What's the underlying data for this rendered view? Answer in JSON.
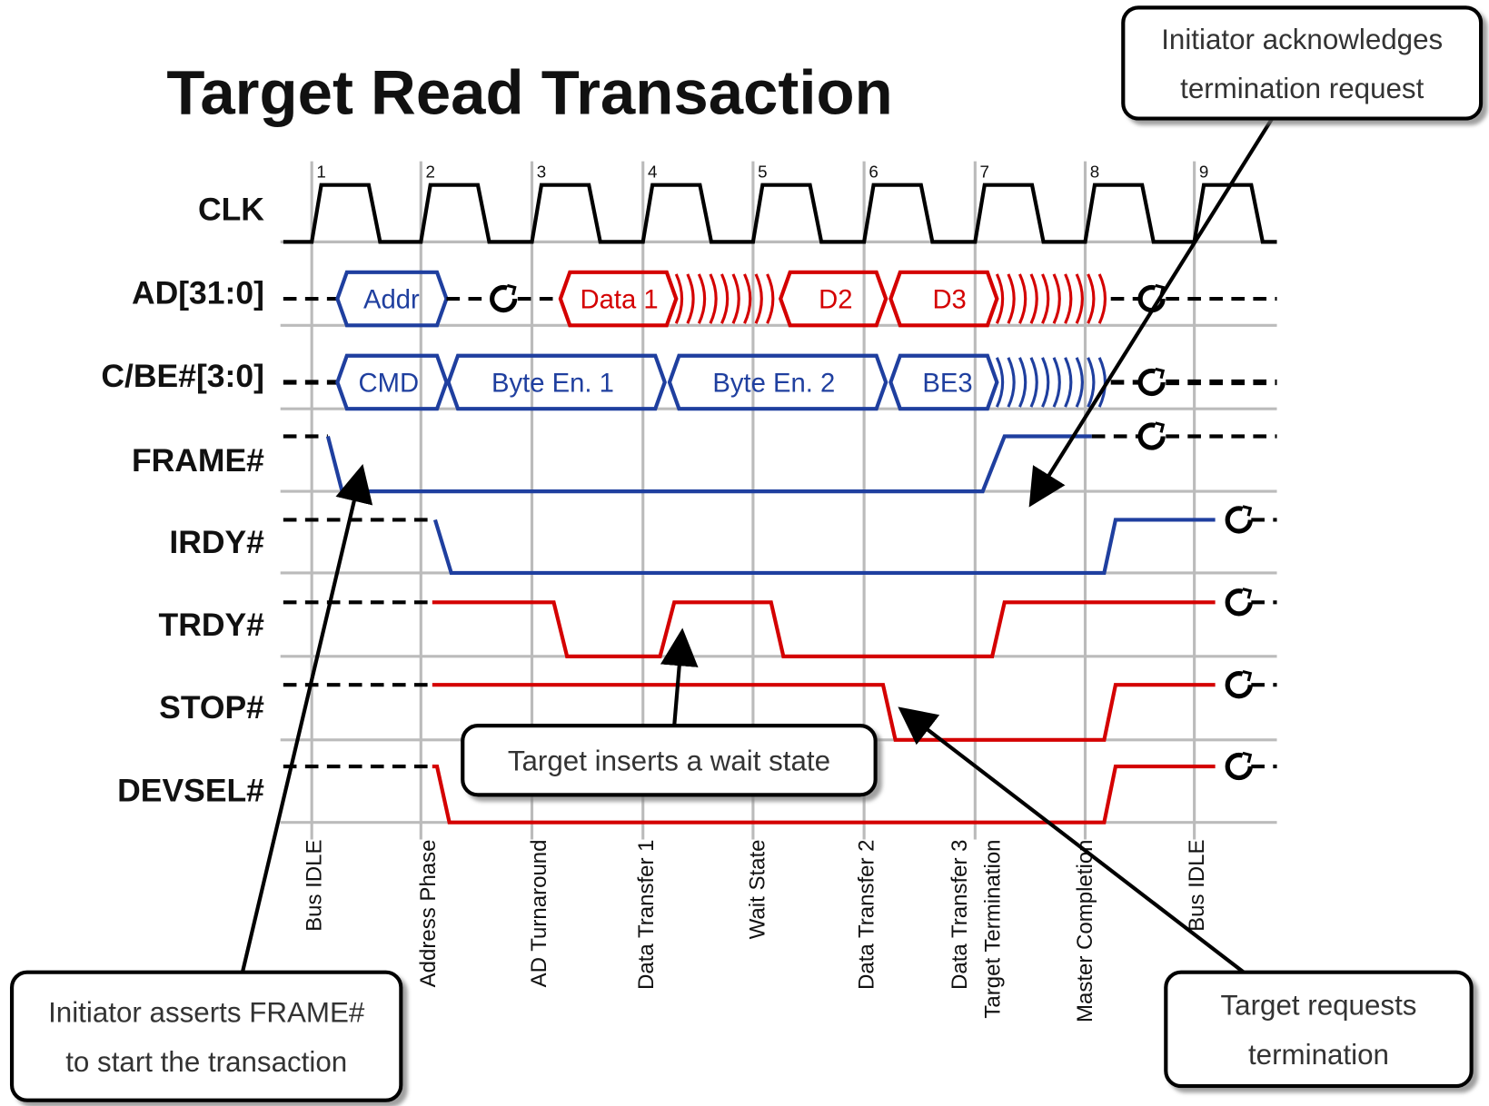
{
  "title": "Target Read Transaction",
  "signals": [
    "CLK",
    "AD[31:0]",
    "C/BE#[3:0]",
    "FRAME#",
    "IRDY#",
    "TRDY#",
    "STOP#",
    "DEVSEL#"
  ],
  "clock_edges": [
    "1",
    "2",
    "3",
    "4",
    "5",
    "6",
    "7",
    "8",
    "9"
  ],
  "ad_segments": [
    "Addr",
    "Data 1",
    "D2",
    "D3"
  ],
  "cbe_segments": [
    "CMD",
    "Byte En. 1",
    "Byte En. 2",
    "BE3"
  ],
  "phases": [
    "Bus IDLE",
    "Address Phase",
    "AD Turnaround",
    "Data Transfer 1",
    "Wait State",
    "Data Transfer 2",
    "Data Transfer 3",
    "Target Termination",
    "Master Completion",
    "Bus IDLE"
  ],
  "callouts": [
    {
      "lines": [
        "Initiator acknowledges",
        "termination request"
      ]
    },
    {
      "lines": [
        "Initiator asserts FRAME#",
        "to start the transaction"
      ]
    },
    {
      "lines": [
        "Target inserts a wait state"
      ]
    },
    {
      "lines": [
        "Target requests",
        "termination"
      ]
    }
  ]
}
